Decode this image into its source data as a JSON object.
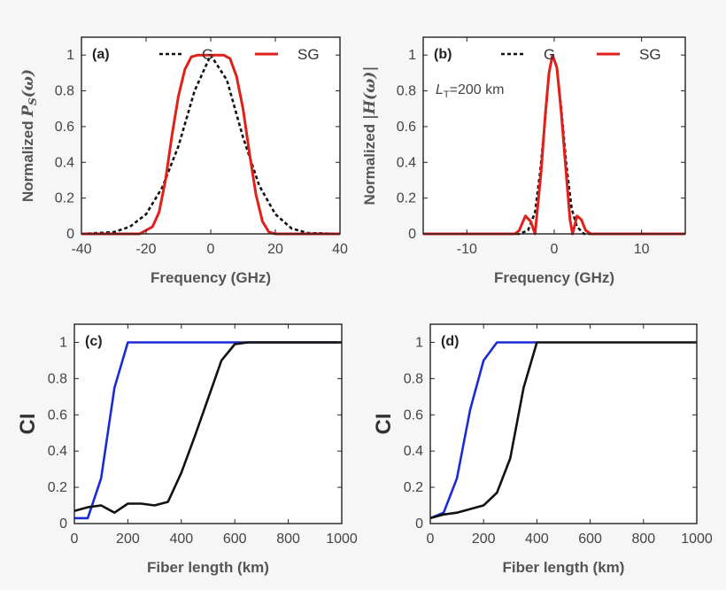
{
  "chart_data": [
    {
      "id": "a",
      "type": "line",
      "panel_label": "(a)",
      "xlabel": "Frequency (GHz)",
      "ylabel_text": "Normalized",
      "ylabel_math": "P",
      "ylabel_sub": "S",
      "ylabel_arg": "(ω)",
      "xlim": [
        -40,
        40
      ],
      "ylim": [
        0,
        1.1
      ],
      "xticks": [
        -40,
        -20,
        0,
        20,
        40
      ],
      "yticks": [
        0,
        0.2,
        0.4,
        0.6,
        0.8,
        1
      ],
      "xtick_labels": [
        "-40",
        "-20",
        "0",
        "20",
        "40"
      ],
      "ytick_labels": [
        "0",
        "0.2",
        "0.4",
        "0.6",
        "0.8",
        "1"
      ],
      "legend": [
        {
          "label": "G",
          "style": "dashed",
          "color": "#111111"
        },
        {
          "label": "SG",
          "style": "solid",
          "color": "#e0201b"
        }
      ],
      "series": [
        {
          "name": "G",
          "style": "dashed",
          "color": "#111111",
          "points": [
            [
              -40,
              0
            ],
            [
              -30,
              0.01
            ],
            [
              -25,
              0.04
            ],
            [
              -20,
              0.11
            ],
            [
              -15,
              0.26
            ],
            [
              -10,
              0.49
            ],
            [
              -5,
              0.8
            ],
            [
              0,
              1.0
            ],
            [
              5,
              0.86
            ],
            [
              10,
              0.54
            ],
            [
              15,
              0.27
            ],
            [
              20,
              0.11
            ],
            [
              25,
              0.03
            ],
            [
              30,
              0.005
            ],
            [
              40,
              0
            ]
          ]
        },
        {
          "name": "SG",
          "style": "solid",
          "color": "#e0201b",
          "points": [
            [
              -40,
              0
            ],
            [
              -22,
              0
            ],
            [
              -18,
              0.04
            ],
            [
              -16,
              0.12
            ],
            [
              -14,
              0.3
            ],
            [
              -12,
              0.55
            ],
            [
              -10,
              0.77
            ],
            [
              -8,
              0.92
            ],
            [
              -6,
              0.99
            ],
            [
              -4,
              1.0
            ],
            [
              4,
              1.0
            ],
            [
              6,
              0.98
            ],
            [
              8,
              0.88
            ],
            [
              10,
              0.7
            ],
            [
              12,
              0.45
            ],
            [
              14,
              0.22
            ],
            [
              16,
              0.07
            ],
            [
              18,
              0.01
            ],
            [
              20,
              0
            ],
            [
              40,
              0
            ]
          ]
        }
      ]
    },
    {
      "id": "b",
      "type": "line",
      "panel_label": "(b)",
      "annotation_L": "L",
      "annotation_sub": "T",
      "annotation_rest": "=200 km",
      "xlabel": "Frequency (GHz)",
      "ylabel_text": "Normalized",
      "ylabel_math": "|H(ω)|",
      "xlim": [
        -15,
        15
      ],
      "ylim": [
        0,
        1.1
      ],
      "xticks": [
        -10,
        0,
        10
      ],
      "yticks": [
        0,
        0.2,
        0.4,
        0.6,
        0.8,
        1
      ],
      "xtick_labels": [
        "-10",
        "0",
        "10"
      ],
      "ytick_labels": [
        "0",
        "0.2",
        "0.4",
        "0.6",
        "0.8",
        "1"
      ],
      "legend": [
        {
          "label": "G",
          "style": "dashed",
          "color": "#111111"
        },
        {
          "label": "SG",
          "style": "solid",
          "color": "#e0201b"
        }
      ],
      "series": [
        {
          "name": "G",
          "style": "dashed",
          "color": "#111111",
          "points": [
            [
              -15,
              0
            ],
            [
              -4,
              0
            ],
            [
              -3,
              0.02
            ],
            [
              -2.2,
              0.12
            ],
            [
              -1.6,
              0.35
            ],
            [
              -1.0,
              0.66
            ],
            [
              -0.6,
              0.9
            ],
            [
              -0.2,
              1.0
            ],
            [
              0.3,
              0.93
            ],
            [
              0.8,
              0.7
            ],
            [
              1.4,
              0.38
            ],
            [
              2.0,
              0.14
            ],
            [
              2.6,
              0.04
            ],
            [
              3.4,
              0
            ],
            [
              15,
              0
            ]
          ]
        },
        {
          "name": "SG",
          "style": "solid",
          "color": "#e0201b",
          "points": [
            [
              -15,
              0
            ],
            [
              -4.5,
              0
            ],
            [
              -4.0,
              0.02
            ],
            [
              -3.3,
              0.1
            ],
            [
              -2.7,
              0.07
            ],
            [
              -2.2,
              0
            ],
            [
              -1.5,
              0.35
            ],
            [
              -1.0,
              0.68
            ],
            [
              -0.6,
              0.9
            ],
            [
              -0.2,
              1.0
            ],
            [
              0.3,
              0.93
            ],
            [
              0.8,
              0.68
            ],
            [
              1.3,
              0.38
            ],
            [
              1.8,
              0.08
            ],
            [
              2.1,
              0
            ],
            [
              2.6,
              0.1
            ],
            [
              3.1,
              0.08
            ],
            [
              3.6,
              0.02
            ],
            [
              4.2,
              0
            ],
            [
              15,
              0
            ]
          ]
        }
      ]
    },
    {
      "id": "c",
      "type": "line",
      "panel_label": "(c)",
      "xlabel": "Fiber length (km)",
      "ylabel": "CI",
      "xlim": [
        0,
        1000
      ],
      "ylim": [
        0,
        1.1
      ],
      "xticks": [
        0,
        200,
        400,
        600,
        800,
        1000
      ],
      "yticks": [
        0,
        0.2,
        0.4,
        0.6,
        0.8,
        1
      ],
      "xtick_labels": [
        "0",
        "200",
        "400",
        "600",
        "800",
        "1000"
      ],
      "ytick_labels": [
        "0",
        "0.2",
        "0.4",
        "0.6",
        "0.8",
        "1"
      ],
      "series": [
        {
          "style": "solid",
          "color": "#1a2bd6",
          "points": [
            [
              0,
              0.03
            ],
            [
              50,
              0.03
            ],
            [
              100,
              0.25
            ],
            [
              150,
              0.75
            ],
            [
              200,
              1.0
            ],
            [
              600,
              1.0
            ],
            [
              1000,
              1.0
            ]
          ]
        },
        {
          "style": "solid",
          "color": "#111111",
          "points": [
            [
              0,
              0.07
            ],
            [
              50,
              0.09
            ],
            [
              100,
              0.1
            ],
            [
              150,
              0.06
            ],
            [
              200,
              0.11
            ],
            [
              250,
              0.11
            ],
            [
              300,
              0.1
            ],
            [
              350,
              0.12
            ],
            [
              400,
              0.28
            ],
            [
              450,
              0.48
            ],
            [
              500,
              0.69
            ],
            [
              550,
              0.9
            ],
            [
              600,
              0.99
            ],
            [
              650,
              1.0
            ],
            [
              1000,
              1.0
            ]
          ]
        }
      ]
    },
    {
      "id": "d",
      "type": "line",
      "panel_label": "(d)",
      "xlabel": "Fiber length (km)",
      "ylabel": "CI",
      "xlim": [
        0,
        1000
      ],
      "ylim": [
        0,
        1.1
      ],
      "xticks": [
        0,
        200,
        400,
        600,
        800,
        1000
      ],
      "yticks": [
        0,
        0.2,
        0.4,
        0.6,
        0.8,
        1
      ],
      "xtick_labels": [
        "0",
        "200",
        "400",
        "600",
        "800",
        "1000"
      ],
      "ytick_labels": [
        "0",
        "0.2",
        "0.4",
        "0.6",
        "0.8",
        "1"
      ],
      "series": [
        {
          "style": "solid",
          "color": "#1a2bd6",
          "points": [
            [
              0,
              0.03
            ],
            [
              50,
              0.06
            ],
            [
              100,
              0.25
            ],
            [
              150,
              0.63
            ],
            [
              200,
              0.9
            ],
            [
              250,
              1.0
            ],
            [
              400,
              1.0
            ]
          ]
        },
        {
          "style": "solid",
          "color": "#111111",
          "points": [
            [
              0,
              0.03
            ],
            [
              50,
              0.05
            ],
            [
              100,
              0.06
            ],
            [
              150,
              0.08
            ],
            [
              200,
              0.1
            ],
            [
              250,
              0.17
            ],
            [
              300,
              0.36
            ],
            [
              350,
              0.75
            ],
            [
              400,
              1.0
            ],
            [
              1000,
              1.0
            ]
          ]
        }
      ]
    }
  ]
}
